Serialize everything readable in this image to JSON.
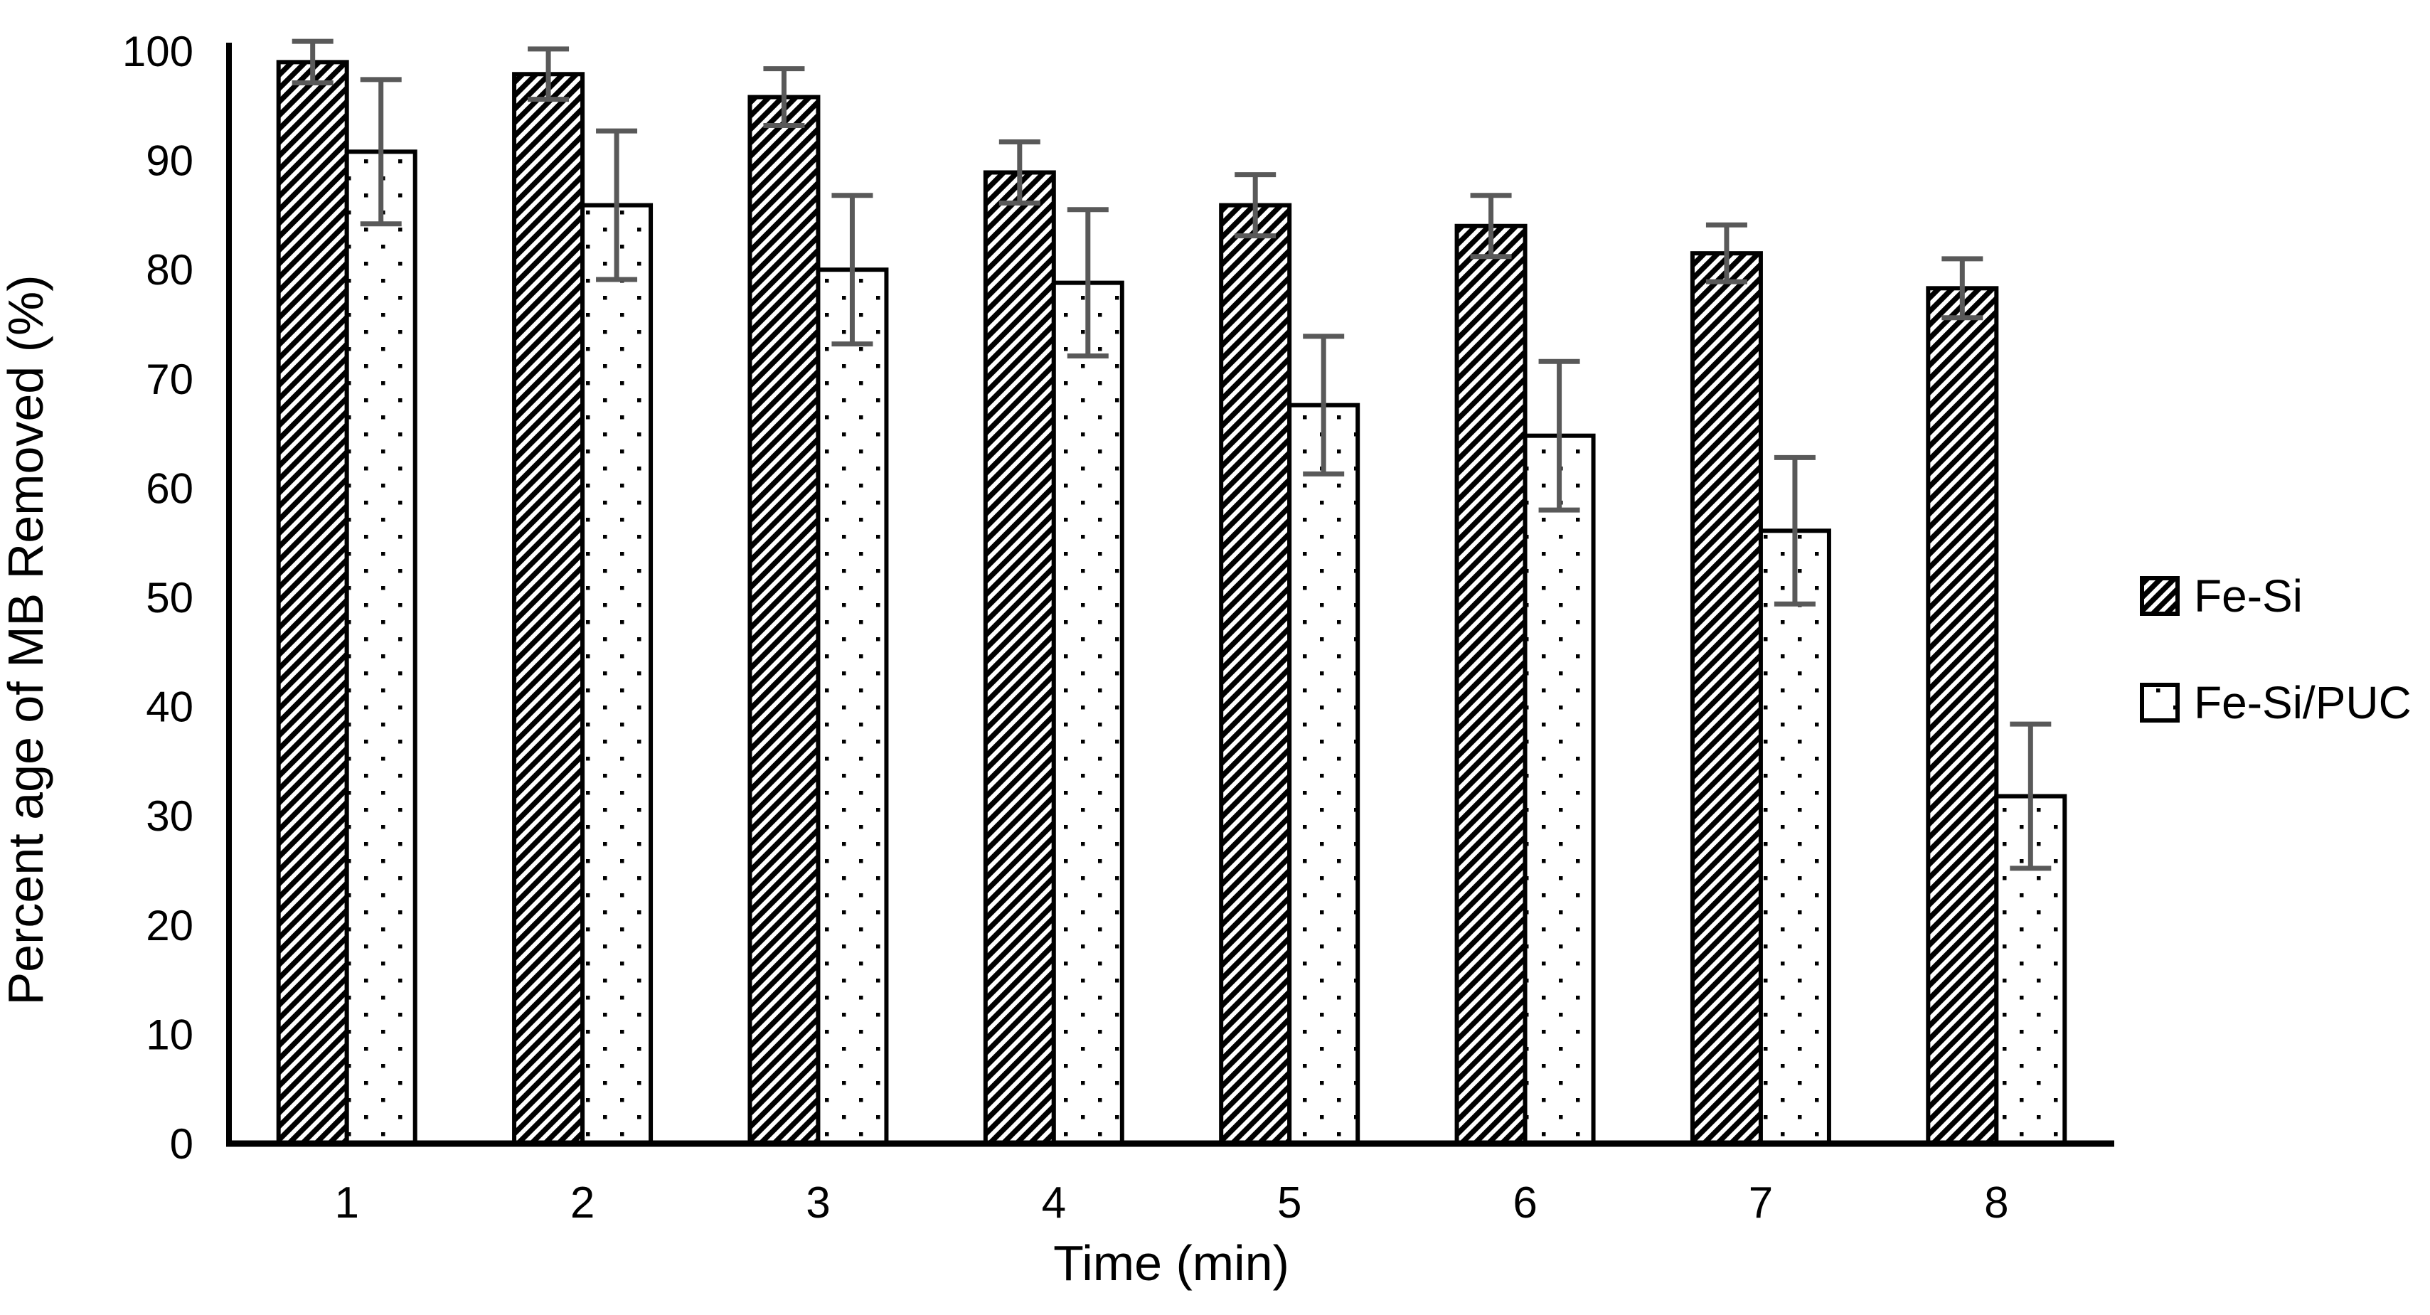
{
  "figure": {
    "background_color": "#ffffff",
    "axis_color": "#000000",
    "error_bar_color": "#595959",
    "bar_fill_color": "#ffffff",
    "bar_outline_color": "#000000"
  },
  "chart_data": {
    "type": "bar",
    "xlabel": "Time (min)",
    "ylabel": "Percent age of MB Removed (%)",
    "categories": [
      "1",
      "2",
      "3",
      "4",
      "5",
      "6",
      "7",
      "8"
    ],
    "ylim": [
      0,
      100
    ],
    "yticks": [
      0,
      10,
      20,
      30,
      40,
      50,
      60,
      70,
      80,
      90,
      100
    ],
    "grid": "off",
    "legend_position": "right",
    "error_bars": "symmetric, gray, with caps",
    "series": [
      {
        "name": "Fe-Si",
        "pattern": "diagonal-hatch",
        "values": [
          99.0,
          97.9,
          95.8,
          88.9,
          85.9,
          84.0,
          81.5,
          78.3
        ],
        "errors": [
          1.9,
          2.3,
          2.6,
          2.8,
          2.8,
          2.8,
          2.6,
          2.7
        ]
      },
      {
        "name": "Fe-Si/PUC",
        "pattern": "dots",
        "values": [
          90.8,
          85.9,
          80.0,
          78.8,
          67.6,
          64.8,
          56.1,
          31.8
        ],
        "errors": [
          6.6,
          6.8,
          6.8,
          6.7,
          6.3,
          6.8,
          6.7,
          6.6
        ]
      }
    ]
  }
}
